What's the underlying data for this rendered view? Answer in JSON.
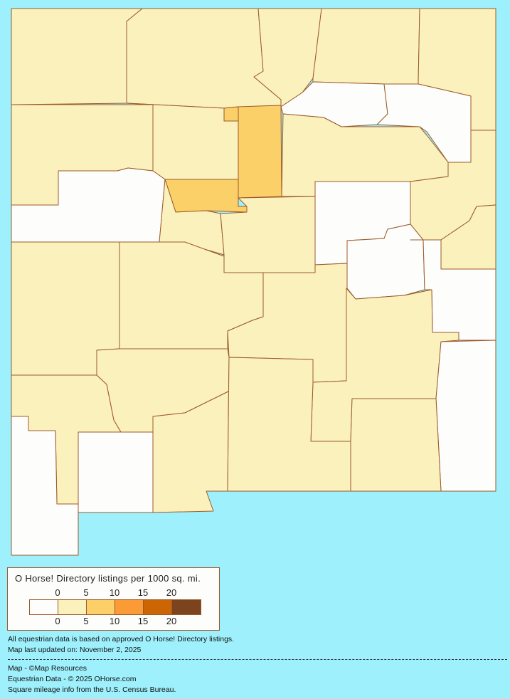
{
  "map": {
    "colors": {
      "c0": "#FDFDFB",
      "c1": "#FBF1BD",
      "c2": "#FCD068",
      "ocean": "#9EF0FC",
      "border": "#9B5A2A"
    }
  },
  "legend": {
    "title": "O Horse! Directory listings per 1000 sq. mi.",
    "ticks_top": [
      "0",
      "5",
      "10",
      "15",
      "20"
    ],
    "ticks_bottom": [
      "0",
      "5",
      "10",
      "15",
      "20"
    ],
    "colors": [
      "#FDFDFB",
      "#FBF1BD",
      "#FCD068",
      "#FB9B35",
      "#CC6504",
      "#7C441E"
    ]
  },
  "notes": {
    "line1": "All equestrian data is based on approved O Horse! Directory listings.",
    "line2": "Map last updated on: November 2, 2025"
  },
  "credits": {
    "map": "Map - ©Map Resources",
    "data": "Equestrian Data - © 2025 OHorse.com",
    "census": "Square mileage info from the U.S. Census Bureau."
  }
}
